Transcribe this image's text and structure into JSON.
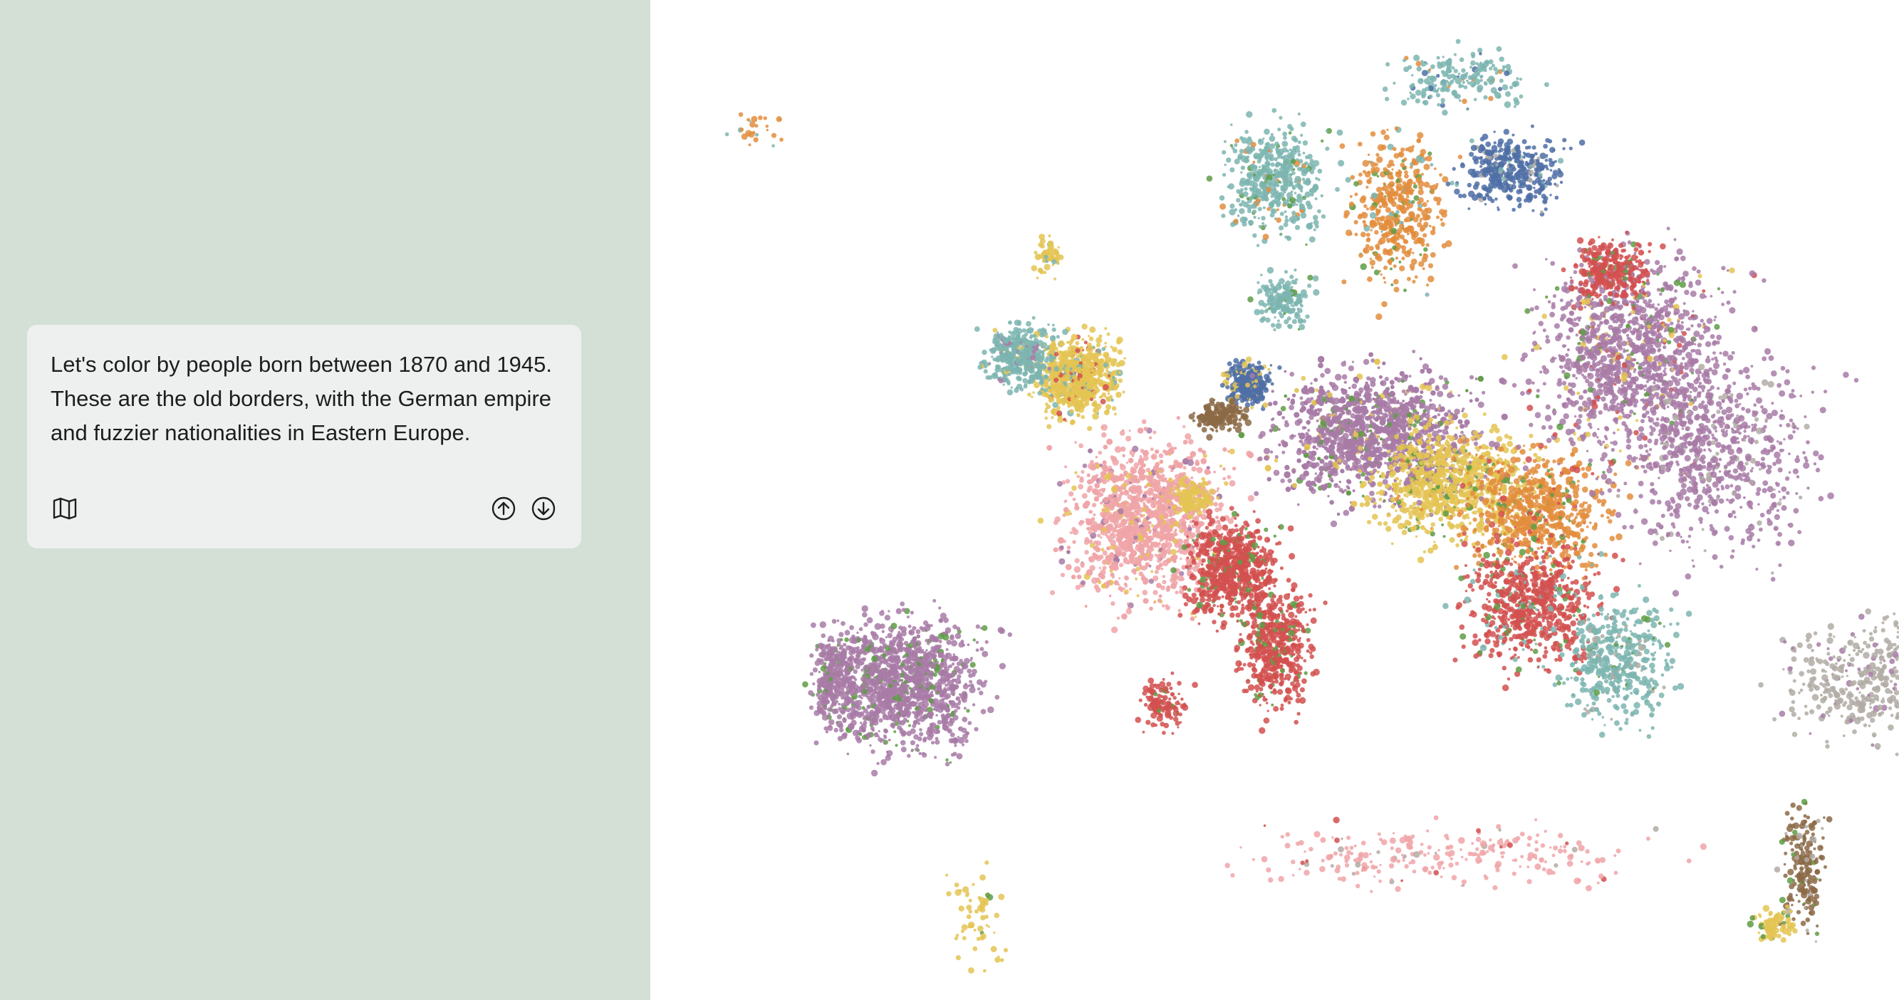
{
  "story": {
    "text": "Let's color by people born between 1870 and 1945. These are the old borders, with the German empire and fuzzier nationalities in Eastern Europe.",
    "icons": {
      "map": "map-icon",
      "previous": "arrow-up-circle-icon",
      "next": "arrow-down-circle-icon"
    }
  },
  "map": {
    "colors": {
      "teal": "#7db5b0",
      "yellow": "#e4c453",
      "blue": "#4f6fa6",
      "orange": "#e38d3d",
      "purple": "#a87ba7",
      "pink": "#f0a4a8",
      "red": "#d2504f",
      "brown": "#8c6a47",
      "green": "#5f9c46",
      "gray": "#b2aca5"
    }
  }
}
